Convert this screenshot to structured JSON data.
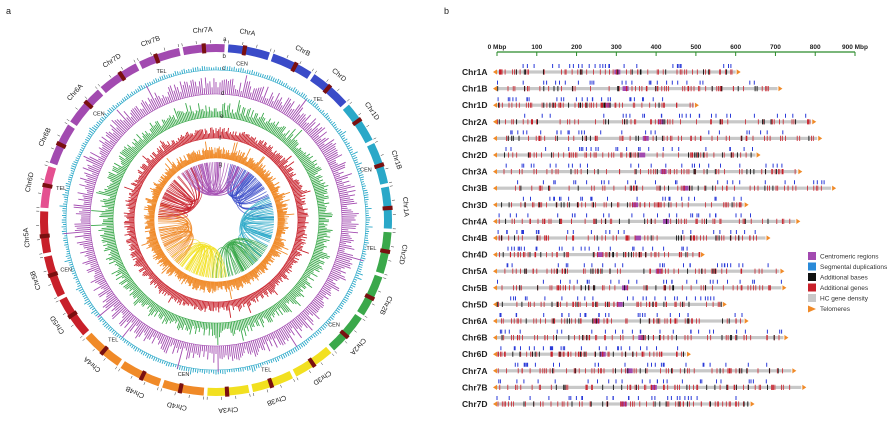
{
  "panel_a": {
    "label": "a",
    "chromosomes": [
      "ChrA",
      "ChrB",
      "ChrD",
      "Chr1D",
      "Chr1B",
      "Chr1A",
      "Chr2D",
      "Chr2B",
      "Chr2A",
      "Chr3D",
      "Chr3B",
      "Chr3A",
      "Chr4D",
      "Chr4B",
      "Chr4A",
      "Chr5D",
      "Chr5B",
      "Chr5A",
      "Chr6D",
      "Chr6B",
      "Chr6A",
      "Chr7D",
      "Chr7B",
      "Chr7A"
    ],
    "ring_labels": [
      "a",
      "b",
      "c",
      "d",
      "e",
      "f",
      "g"
    ],
    "feature_labels": [
      "CEN",
      "TEL"
    ],
    "track_colors": {
      "ring_b": "#2aa8c8",
      "ring_c": "#a24ab0",
      "ring_d": "#3aa84a",
      "ring_e": "#c8202a",
      "ring_f": "#f08a28"
    },
    "link_colors": [
      "#3a4bc8",
      "#2aa8c8",
      "#3aa84a",
      "#f2e020",
      "#f08a28",
      "#c8202a",
      "#a24ab0"
    ]
  },
  "panel_b": {
    "label": "b",
    "axis": {
      "ticks": [
        "0 Mbp",
        "100",
        "200",
        "300",
        "400",
        "500",
        "600",
        "700",
        "800",
        "900 Mbp"
      ],
      "min": 0,
      "max": 900
    },
    "chromosomes": [
      {
        "name": "Chr1A",
        "length": 600
      },
      {
        "name": "Chr1B",
        "length": 705
      },
      {
        "name": "Chr1D",
        "length": 495
      },
      {
        "name": "Chr2A",
        "length": 790
      },
      {
        "name": "Chr2B",
        "length": 805
      },
      {
        "name": "Chr2D",
        "length": 650
      },
      {
        "name": "Chr3A",
        "length": 755
      },
      {
        "name": "Chr3B",
        "length": 840
      },
      {
        "name": "Chr3D",
        "length": 620
      },
      {
        "name": "Chr4A",
        "length": 750
      },
      {
        "name": "Chr4B",
        "length": 675
      },
      {
        "name": "Chr4D",
        "length": 510
      },
      {
        "name": "Chr5A",
        "length": 710
      },
      {
        "name": "Chr5B",
        "length": 715
      },
      {
        "name": "Chr5D",
        "length": 565
      },
      {
        "name": "Chr6A",
        "length": 620
      },
      {
        "name": "Chr6B",
        "length": 720
      },
      {
        "name": "Chr6D",
        "length": 475
      },
      {
        "name": "Chr7A",
        "length": 740
      },
      {
        "name": "Chr7B",
        "length": 765
      },
      {
        "name": "Chr7D",
        "length": 635
      }
    ],
    "legend": [
      {
        "label": "Centromeric regions",
        "color": "#a24ab0",
        "shape": "square"
      },
      {
        "label": "Segmental duplications",
        "color": "#2a8ad8",
        "shape": "square"
      },
      {
        "label": "Additional bases",
        "color": "#111111",
        "shape": "square"
      },
      {
        "label": "Additional genes",
        "color": "#c8202a",
        "shape": "square"
      },
      {
        "label": "HC gene density",
        "color": "#c8c8c8",
        "shape": "square"
      },
      {
        "label": "Telomeres",
        "color": "#f08a28",
        "shape": "triangle"
      }
    ]
  }
}
